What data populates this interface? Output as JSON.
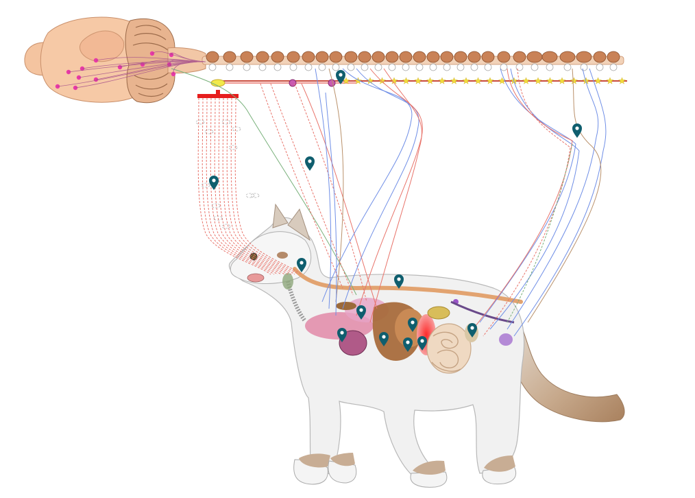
{
  "diagram": {
    "colors": {
      "background": "#ffffff",
      "brain": "#f6c9a6",
      "brain_outline": "#c98f6a",
      "cerebellum": "#e8b48f",
      "spinal_cord": "#f2d2b8",
      "vertebra": "#c07a52",
      "ganglion_chain": "#c94a3a",
      "sympathetic_red": "#e8736a",
      "parasympathetic_blue": "#6f8ee6",
      "sensory_tan": "#b9906a",
      "vagus_green": "#78b07a",
      "nucleus_magenta": "#e83aa6",
      "star_yellow": "#f2dc3a",
      "marker_teal": "#0f5e6e",
      "cat_body": "#f1f1f1",
      "cat_outline": "#b8b8b8",
      "cat_points": "#b99d83",
      "red_bar": "#e61d1d"
    },
    "icons": {
      "marker": "map-pin-icon",
      "ganglion": "star-icon",
      "nucleus": "dot-icon"
    },
    "labels": []
  }
}
